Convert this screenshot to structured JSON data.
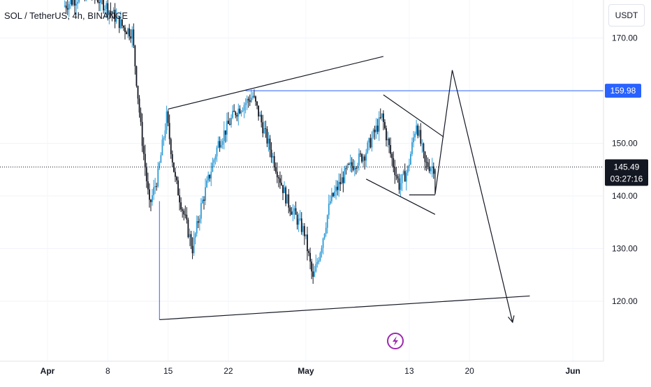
{
  "title": "SOL / TetherUS, 4h, BINANCE",
  "currency_button": "USDT",
  "chart_data": {
    "type": "candlestick",
    "symbol": "SOL / TetherUS",
    "interval": "4h",
    "exchange": "BINANCE",
    "y_ticks": [
      {
        "value": 120,
        "label": "120.00"
      },
      {
        "value": 130,
        "label": "130.00"
      },
      {
        "value": 140,
        "label": "140.00"
      },
      {
        "value": 150,
        "label": "150.00"
      },
      {
        "value": 170,
        "label": "170.00"
      }
    ],
    "x_ticks": [
      {
        "date": "2024-04-01",
        "label": "Apr",
        "bold": true
      },
      {
        "date": "2024-04-08",
        "label": "8",
        "bold": false
      },
      {
        "date": "2024-04-15",
        "label": "15",
        "bold": false
      },
      {
        "date": "2024-04-22",
        "label": "22",
        "bold": false
      },
      {
        "date": "2024-05-01",
        "label": "May",
        "bold": true
      },
      {
        "date": "2024-05-13",
        "label": "13",
        "bold": false
      },
      {
        "date": "2024-05-20",
        "label": "20",
        "bold": false
      },
      {
        "date": "2024-06-01",
        "label": "Jun",
        "bold": true
      }
    ],
    "horizontal_level": {
      "value": 159.98,
      "label": "159.98",
      "color": "#2962ff"
    },
    "last_price": {
      "value": 145.49,
      "label": "145.49",
      "countdown": "03:27:16"
    },
    "colors": {
      "up": "#2f9bd6",
      "down": "#131722",
      "level": "#2962ff",
      "badge_dark": "#131722"
    },
    "price_path": [
      {
        "date": "2024-04-03",
        "price": 176
      },
      {
        "date": "2024-04-06",
        "price": 179
      },
      {
        "date": "2024-04-08",
        "price": 176
      },
      {
        "date": "2024-04-10",
        "price": 172
      },
      {
        "date": "2024-04-11",
        "price": 171
      },
      {
        "date": "2024-04-12",
        "price": 153
      },
      {
        "date": "2024-04-13",
        "price": 138
      },
      {
        "date": "2024-04-14",
        "price": 144
      },
      {
        "date": "2024-04-15",
        "price": 155
      },
      {
        "date": "2024-04-16",
        "price": 143
      },
      {
        "date": "2024-04-18",
        "price": 130
      },
      {
        "date": "2024-04-19",
        "price": 138
      },
      {
        "date": "2024-04-21",
        "price": 150
      },
      {
        "date": "2024-04-23",
        "price": 156
      },
      {
        "date": "2024-04-25",
        "price": 159
      },
      {
        "date": "2024-04-27",
        "price": 149
      },
      {
        "date": "2024-04-29",
        "price": 139
      },
      {
        "date": "2024-05-01",
        "price": 133
      },
      {
        "date": "2024-05-02",
        "price": 124
      },
      {
        "date": "2024-05-03",
        "price": 131
      },
      {
        "date": "2024-05-04",
        "price": 139
      },
      {
        "date": "2024-05-06",
        "price": 145
      },
      {
        "date": "2024-05-08",
        "price": 148
      },
      {
        "date": "2024-05-10",
        "price": 155
      },
      {
        "date": "2024-05-11",
        "price": 148
      },
      {
        "date": "2024-05-12",
        "price": 142
      },
      {
        "date": "2024-05-13",
        "price": 145
      },
      {
        "date": "2024-05-14",
        "price": 154
      },
      {
        "date": "2024-05-15",
        "price": 146
      },
      {
        "date": "2024-05-16",
        "price": 145.49
      }
    ],
    "drawings": {
      "wedge_upper": [
        {
          "date": "2024-04-15",
          "price": 156.5
        },
        {
          "date": "2024-05-10",
          "price": 166.5
        }
      ],
      "wedge_lower": [
        {
          "date": "2024-04-14",
          "price": 116.5
        },
        {
          "date": "2024-05-27",
          "price": 121
        }
      ],
      "vertical_marker": [
        {
          "date": "2024-04-14",
          "price": 116.5
        },
        {
          "date": "2024-04-14",
          "price": 139
        }
      ],
      "flag_upper": [
        {
          "date": "2024-05-10",
          "price": 159.2
        },
        {
          "date": "2024-05-17",
          "price": 151.2
        }
      ],
      "flag_lower": [
        {
          "date": "2024-05-08",
          "price": 143.2
        },
        {
          "date": "2024-05-16",
          "price": 136.5
        }
      ],
      "flag_base": [
        {
          "date": "2024-05-13",
          "price": 140.2
        },
        {
          "date": "2024-05-16",
          "price": 140.2
        }
      ],
      "projection": [
        {
          "date": "2024-05-16",
          "price": 145.2
        },
        {
          "date": "2024-05-16",
          "price": 140.3
        },
        {
          "date": "2024-05-18",
          "price": 163.9
        },
        {
          "date": "2024-05-25",
          "price": 116
        }
      ]
    }
  }
}
